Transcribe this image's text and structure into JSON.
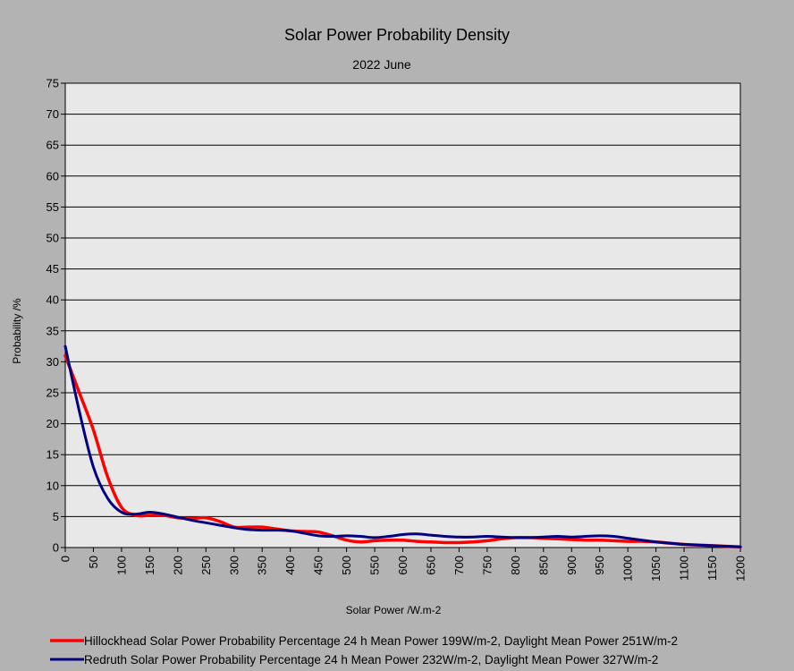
{
  "chart_data": {
    "type": "line",
    "title": "Solar Power Probability Density",
    "subtitle": "2022 June",
    "xlabel": "Solar Power /W.m-2",
    "ylabel": "Probability /%",
    "xlim": [
      0,
      1200
    ],
    "ylim": [
      0,
      75
    ],
    "x_ticks": [
      "0",
      "50",
      "100",
      "150",
      "200",
      "250",
      "300",
      "350",
      "400",
      "450",
      "500",
      "550",
      "600",
      "650",
      "700",
      "750",
      "800",
      "850",
      "900",
      "950",
      "1000",
      "1050",
      "1100",
      "1150",
      "1200"
    ],
    "y_ticks": [
      "0",
      "5",
      "10",
      "15",
      "20",
      "25",
      "30",
      "35",
      "40",
      "45",
      "50",
      "55",
      "60",
      "65",
      "70",
      "75"
    ],
    "grid": true,
    "legend_position": "bottom",
    "series": [
      {
        "name": "Hillockhead Solar Power Probability Percentage  24 h Mean Power 199W/m-2, Daylight Mean Power 251W/m-2",
        "color": "#ff0000",
        "x": [
          0,
          25,
          50,
          75,
          100,
          125,
          150,
          175,
          200,
          225,
          250,
          275,
          300,
          325,
          350,
          375,
          400,
          425,
          450,
          475,
          500,
          525,
          550,
          575,
          600,
          625,
          650,
          675,
          700,
          725,
          750,
          775,
          800,
          825,
          850,
          875,
          900,
          925,
          950,
          975,
          1000,
          1025,
          1050,
          1075,
          1100,
          1125,
          1150,
          1175,
          1200
        ],
        "values": [
          31,
          25,
          19,
          11.5,
          6.5,
          5.2,
          5.2,
          5.2,
          4.8,
          4.7,
          4.8,
          4.2,
          3.3,
          3.3,
          3.3,
          3.0,
          2.7,
          2.6,
          2.5,
          1.9,
          1.2,
          0.9,
          1.1,
          1.2,
          1.2,
          1.0,
          0.9,
          0.8,
          0.8,
          0.9,
          1.1,
          1.4,
          1.6,
          1.6,
          1.5,
          1.4,
          1.3,
          1.2,
          1.2,
          1.1,
          1.0,
          1.0,
          0.9,
          0.7,
          0.5,
          0.4,
          0.3,
          0.2,
          0.1
        ]
      },
      {
        "name": "Redruth Solar Power Probability Percentage  24 h Mean Power 232W/m-2, Daylight Mean Power 327W/m-2",
        "color": "#000080",
        "x": [
          0,
          25,
          50,
          75,
          100,
          125,
          150,
          175,
          200,
          225,
          250,
          275,
          300,
          325,
          350,
          375,
          400,
          425,
          450,
          475,
          500,
          525,
          550,
          575,
          600,
          625,
          650,
          675,
          700,
          725,
          750,
          775,
          800,
          825,
          850,
          875,
          900,
          925,
          950,
          975,
          1000,
          1025,
          1050,
          1075,
          1100,
          1125,
          1150,
          1175,
          1200
        ],
        "values": [
          32.5,
          22,
          13,
          8,
          5.7,
          5.4,
          5.7,
          5.4,
          4.9,
          4.4,
          4.0,
          3.6,
          3.2,
          2.9,
          2.8,
          2.8,
          2.7,
          2.3,
          1.9,
          1.8,
          1.9,
          1.8,
          1.6,
          1.8,
          2.1,
          2.2,
          2.0,
          1.8,
          1.7,
          1.7,
          1.8,
          1.7,
          1.6,
          1.6,
          1.7,
          1.8,
          1.7,
          1.8,
          1.9,
          1.8,
          1.5,
          1.2,
          0.9,
          0.7,
          0.5,
          0.4,
          0.3,
          0.2,
          0.1
        ]
      }
    ]
  }
}
